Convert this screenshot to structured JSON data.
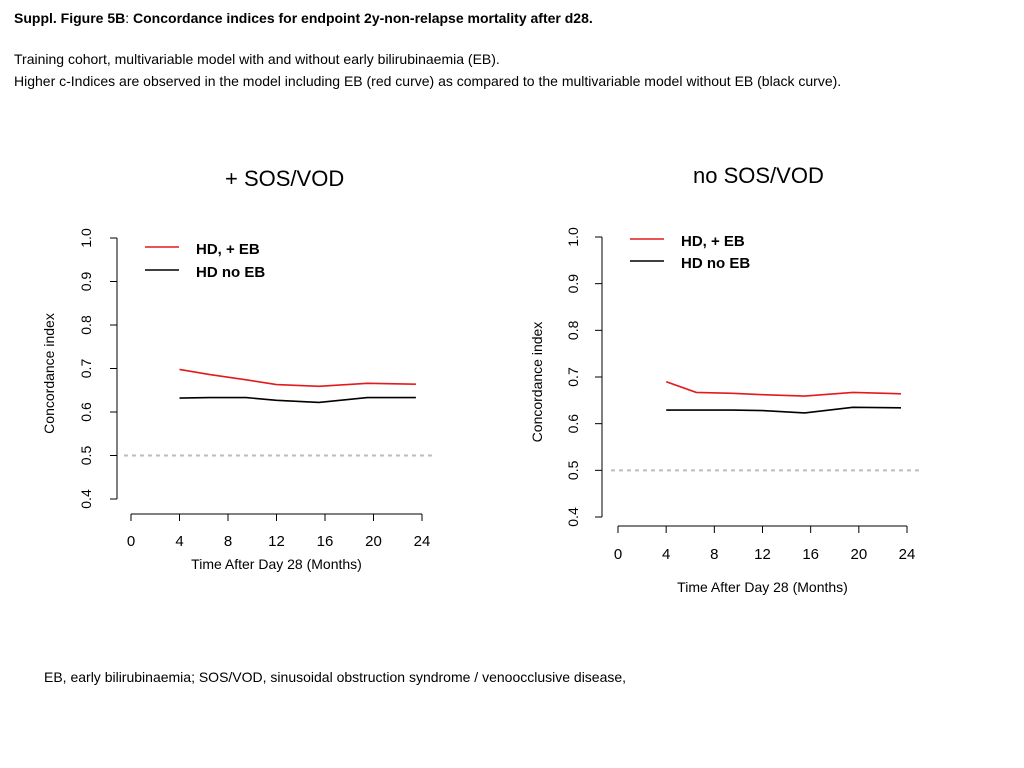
{
  "figure": {
    "title_prefix": "Suppl. Figure 5B",
    "title_sep": ":",
    "title_rest": " Concordance indices for endpoint 2y-non-relapse mortality after d28.",
    "line1": "Training cohort, multivariable model with and without early bilirubinaemia (EB).",
    "line2": "Higher c-Indices are observed in the model including EB (red curve) as compared to the multivariable model without EB (black curve).",
    "footnote": "EB, early bilirubinaemia; SOS/VOD, sinusoidal obstruction syndrome / venoocclusive disease,"
  },
  "panels": [
    {
      "title": "+ SOS/VOD"
    },
    {
      "title": "no SOS/VOD"
    }
  ],
  "colors": {
    "eb": "#e31a1c",
    "no_eb": "#000000",
    "reference": "#bdbdbd"
  },
  "chart_data": [
    {
      "type": "line",
      "title": "+ SOS/VOD",
      "xlabel": "Time After Day 28 (Months)",
      "ylabel": "Concordance index",
      "xlim": [
        0,
        24
      ],
      "ylim": [
        0.4,
        1.0
      ],
      "xticks": [
        0,
        4,
        8,
        12,
        16,
        20,
        24
      ],
      "yticks": [
        0.4,
        0.5,
        0.6,
        0.7,
        0.8,
        0.9,
        1.0
      ],
      "reference_line": 0.5,
      "legend": "top-left",
      "series": [
        {
          "name": "HD, + EB",
          "color": "#e31a1c",
          "x": [
            4,
            6.5,
            9.5,
            12,
            15.5,
            19.5,
            23.5
          ],
          "values": [
            0.698,
            0.686,
            0.674,
            0.663,
            0.659,
            0.666,
            0.664
          ]
        },
        {
          "name": "HD no EB",
          "color": "#000000",
          "x": [
            4,
            6.5,
            9.5,
            12,
            15.5,
            19.5,
            23.5
          ],
          "values": [
            0.632,
            0.633,
            0.633,
            0.627,
            0.622,
            0.633,
            0.633
          ]
        }
      ]
    },
    {
      "type": "line",
      "title": "no SOS/VOD",
      "xlabel": "Time After Day 28 (Months)",
      "ylabel": "Concordance index",
      "xlim": [
        0,
        24
      ],
      "ylim": [
        0.4,
        1.0
      ],
      "xticks": [
        0,
        4,
        8,
        12,
        16,
        20,
        24
      ],
      "yticks": [
        0.4,
        0.5,
        0.6,
        0.7,
        0.8,
        0.9,
        1.0
      ],
      "reference_line": 0.5,
      "legend": "top-left",
      "series": [
        {
          "name": "HD, + EB",
          "color": "#e31a1c",
          "x": [
            4,
            6.5,
            9.5,
            12,
            15.5,
            19.5,
            23.5
          ],
          "values": [
            0.69,
            0.667,
            0.665,
            0.662,
            0.659,
            0.667,
            0.664
          ]
        },
        {
          "name": "HD no EB",
          "color": "#000000",
          "x": [
            4,
            6.5,
            9.5,
            12,
            15.5,
            19.5,
            23.5
          ],
          "values": [
            0.629,
            0.629,
            0.629,
            0.628,
            0.623,
            0.635,
            0.634
          ]
        }
      ]
    }
  ]
}
